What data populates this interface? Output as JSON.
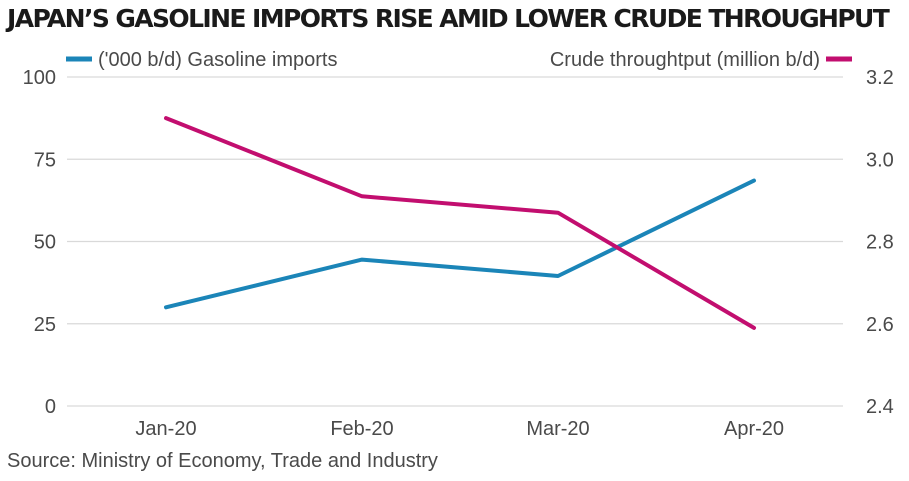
{
  "title": "JAPAN’S GASOLINE IMPORTS RISE AMID LOWER CRUDE THROUGHPUT",
  "source": "Source: Ministry of Economy, Trade and Industry",
  "chart_data": {
    "type": "line",
    "categories": [
      "Jan-20",
      "Feb-20",
      "Mar-20",
      "Apr-20"
    ],
    "series": [
      {
        "name": "('000 b/d) Gasoline imports",
        "axis": "left",
        "color": "#1b85b8",
        "values": [
          30,
          44.5,
          39.5,
          68.5
        ]
      },
      {
        "name": "Crude throughtput (million b/d)",
        "axis": "right",
        "color": "#c20e6f",
        "values": [
          3.1,
          2.91,
          2.87,
          2.59
        ]
      }
    ],
    "y_left": {
      "range": [
        0,
        100
      ],
      "ticks": [
        "0",
        "25",
        "50",
        "75",
        "100"
      ]
    },
    "y_right": {
      "range": [
        2.4,
        3.2
      ],
      "ticks": [
        "2.4",
        "2.6",
        "2.8",
        "3.0",
        "3.2"
      ]
    },
    "grid": true,
    "legend_placement": "top"
  }
}
